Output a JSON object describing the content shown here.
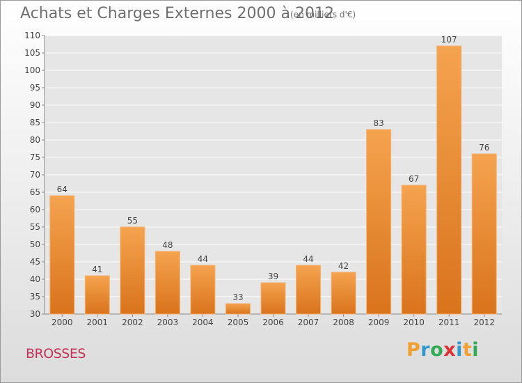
{
  "header": {
    "title": "Achats et Charges Externes 2000 à 2012",
    "unit": "(en milliers d'€)"
  },
  "footer": {
    "commune": "BROSSES",
    "logo_text": "Proxiti"
  },
  "colors": {
    "bar_top": "#f5a34f",
    "bar_bottom": "#d9731c",
    "title": "#6f6f6f",
    "commune": "#c2345a",
    "logo": [
      "#f0a030",
      "#3399cc",
      "#33aa55",
      "#dd3333",
      "#3399cc",
      "#f0a030",
      "#33aa55"
    ]
  },
  "chart_data": {
    "type": "bar",
    "title": "Achats et Charges Externes 2000 à 2012",
    "categories": [
      "2000",
      "2001",
      "2002",
      "2003",
      "2004",
      "2005",
      "2006",
      "2007",
      "2008",
      "2009",
      "2010",
      "2011",
      "2012"
    ],
    "values": [
      64,
      41,
      55,
      48,
      44,
      33,
      39,
      44,
      42,
      83,
      67,
      107,
      76
    ],
    "ylim": [
      30,
      110
    ],
    "yticks": [
      30,
      35,
      40,
      45,
      50,
      55,
      60,
      65,
      70,
      75,
      80,
      85,
      90,
      95,
      100,
      105,
      110
    ],
    "grid": true,
    "data_labels": true
  }
}
